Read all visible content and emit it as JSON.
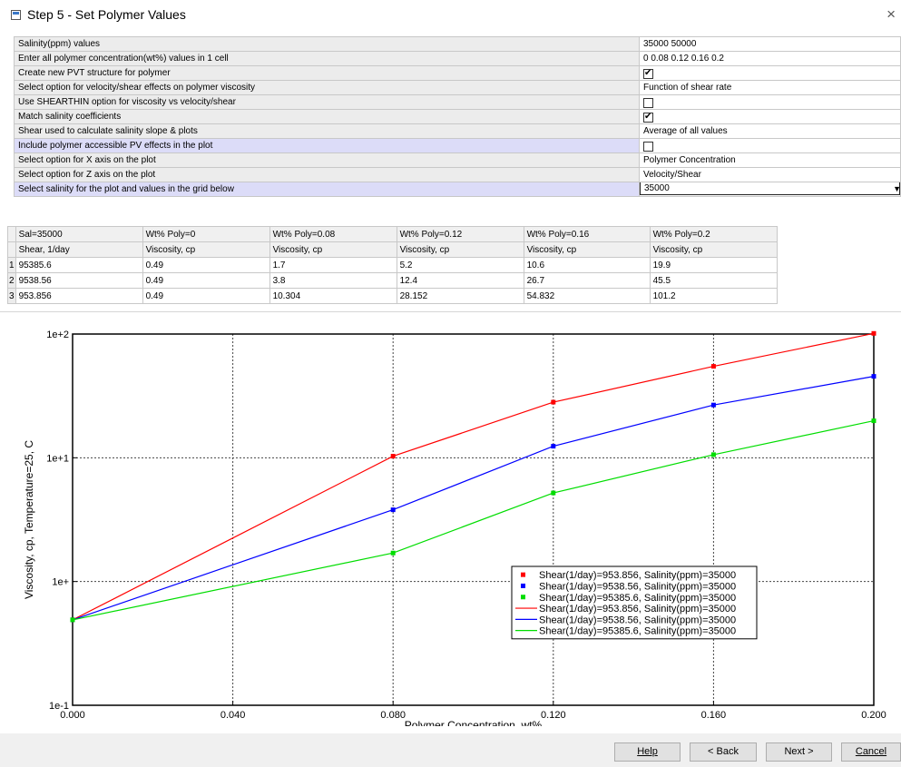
{
  "window": {
    "title": "Step 5 - Set Polymer Values",
    "close_glyph": "×"
  },
  "props": [
    {
      "label": "Salinity(ppm) values",
      "type": "text",
      "value": "35000 50000"
    },
    {
      "label": "Enter all polymer concentration(wt%) values in 1 cell",
      "type": "text",
      "value": "0 0.08 0.12 0.16 0.2"
    },
    {
      "label": "Create new PVT structure for polymer",
      "type": "checkbox",
      "checked": true
    },
    {
      "label": "Select option for velocity/shear effects on polymer viscosity",
      "type": "text",
      "value": "Function of shear rate"
    },
    {
      "label": "Use SHEARTHIN option for viscosity vs velocity/shear",
      "type": "checkbox",
      "checked": false
    },
    {
      "label": "Match salinity coefficients",
      "type": "checkbox",
      "checked": true
    },
    {
      "label": "Shear used to calculate salinity slope & plots",
      "type": "text",
      "value": "Average of all values"
    },
    {
      "label": "Include polymer accessible PV effects in the plot",
      "type": "checkbox",
      "checked": false,
      "highlight": true
    },
    {
      "label": "Select option for X axis on the plot",
      "type": "text",
      "value": "Polymer Concentration"
    },
    {
      "label": "Select option for Z axis on the plot",
      "type": "text",
      "value": "Velocity/Shear"
    },
    {
      "label": "Select salinity for the plot and values in the grid below",
      "type": "select",
      "value": "35000",
      "highlight": true
    }
  ],
  "grid": {
    "group_header": [
      "Sal=35000",
      "Wt% Poly=0",
      "Wt% Poly=0.08",
      "Wt% Poly=0.12",
      "Wt% Poly=0.16",
      "Wt% Poly=0.2"
    ],
    "sub_header": [
      "Shear, 1/day",
      "Viscosity, cp",
      "Viscosity, cp",
      "Viscosity, cp",
      "Viscosity, cp",
      "Viscosity, cp"
    ],
    "rows": [
      {
        "n": "1",
        "cells": [
          "95385.6",
          "0.49",
          "1.7",
          "5.2",
          "10.6",
          "19.9"
        ]
      },
      {
        "n": "2",
        "cells": [
          "9538.56",
          "0.49",
          "3.8",
          "12.4",
          "26.7",
          "45.5"
        ]
      },
      {
        "n": "3",
        "cells": [
          "953.856",
          "0.49",
          "10.304",
          "28.152",
          "54.832",
          "101.2"
        ]
      }
    ]
  },
  "chart_data": {
    "type": "line",
    "xlabel": "Polymer Concentration, wt%",
    "ylabel": "Viscosity, cp, Temperature=25, C",
    "yscale": "log",
    "xlim": [
      0,
      0.2
    ],
    "ylim": [
      0.1,
      100
    ],
    "grid": true,
    "legend_position": "bottom-right",
    "x_ticks": [
      "0.000",
      "0.040",
      "0.080",
      "0.120",
      "0.160",
      "0.200"
    ],
    "y_ticks": [
      "1e+2",
      "1e+1",
      "1e+",
      "1e-1"
    ],
    "x": [
      0,
      0.08,
      0.12,
      0.16,
      0.2
    ],
    "series": [
      {
        "name": "Shear(1/day)=953.856, Salinity(ppm)=35000",
        "color": "#ff0000",
        "values": [
          0.49,
          10.304,
          28.152,
          54.832,
          101.2
        ]
      },
      {
        "name": "Shear(1/day)=9538.56, Salinity(ppm)=35000",
        "color": "#0000ff",
        "values": [
          0.49,
          3.8,
          12.4,
          26.7,
          45.5
        ]
      },
      {
        "name": "Shear(1/day)=95385.6, Salinity(ppm)=35000",
        "color": "#00dd00",
        "values": [
          0.49,
          1.7,
          5.2,
          10.6,
          19.9
        ]
      }
    ]
  },
  "buttons": {
    "help": "Help",
    "back": "< Back",
    "next": "Next >",
    "cancel": "Cancel"
  }
}
